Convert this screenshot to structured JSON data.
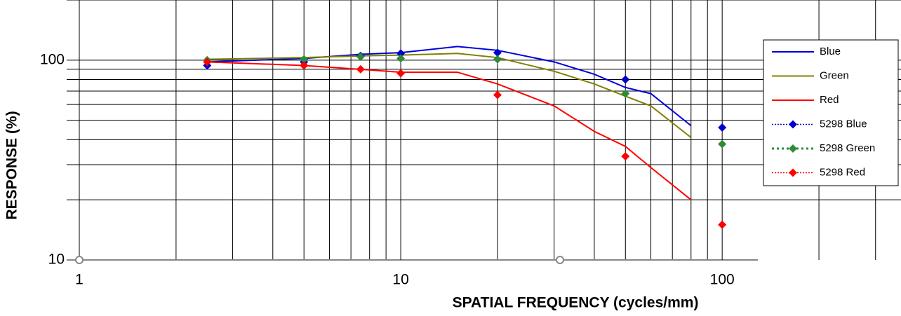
{
  "chart_data": {
    "type": "line",
    "xlabel": "SPATIAL FREQUENCY (cycles/mm)",
    "ylabel": "RESPONSE (%)",
    "xscale": "log",
    "yscale": "log",
    "grid": true,
    "legend": "right",
    "xlim": [
      1,
      360
    ],
    "ylim": [
      10,
      200
    ],
    "xticks": [
      1,
      10,
      100
    ],
    "yticks": [
      10,
      100
    ],
    "x_minor_ticks": [
      2,
      3,
      4,
      5,
      6,
      7,
      8,
      9,
      20,
      30,
      40,
      50,
      60,
      70,
      80,
      90,
      200,
      300
    ],
    "y_minor_ticks": [
      20,
      30,
      40,
      50,
      60,
      70,
      80,
      90,
      200
    ],
    "series": [
      {
        "name": "Blue",
        "color": "#0000dd",
        "style": "line",
        "x": [
          2.5,
          5,
          7.5,
          10,
          15,
          20,
          30,
          40,
          50,
          60,
          80
        ],
        "values": [
          98,
          102,
          107,
          109,
          117,
          112,
          98,
          85,
          73,
          68,
          47
        ]
      },
      {
        "name": "Green",
        "color": "#808000",
        "style": "line",
        "x": [
          2.5,
          5,
          7.5,
          10,
          15,
          20,
          30,
          40,
          50,
          60,
          80
        ],
        "values": [
          101,
          103,
          105,
          106,
          108,
          103,
          88,
          76,
          66,
          59,
          41
        ]
      },
      {
        "name": "Red",
        "color": "#ff0000",
        "style": "line",
        "x": [
          2.5,
          5,
          7.5,
          10,
          15,
          20,
          30,
          40,
          50,
          60,
          80
        ],
        "values": [
          98,
          94,
          90,
          87,
          87,
          76,
          59,
          44,
          37,
          29,
          20
        ]
      },
      {
        "name": "5298 Blue",
        "color": "#0000cc",
        "style": "markers",
        "x": [
          2.5,
          5,
          7.5,
          10,
          20,
          50,
          100
        ],
        "values": [
          94,
          98,
          105,
          108,
          109,
          80,
          46
        ]
      },
      {
        "name": "5298 Green",
        "color": "#2e8b3a",
        "style": "markers",
        "x": [
          2.5,
          5,
          7.5,
          10,
          20,
          50,
          100
        ],
        "values": [
          100,
          101,
          104,
          102,
          101,
          68,
          38
        ]
      },
      {
        "name": "5298 Red",
        "color": "#ff0000",
        "style": "markers",
        "x": [
          2.5,
          5,
          7.5,
          10,
          20,
          50,
          100
        ],
        "values": [
          98,
          94,
          90,
          86,
          67,
          33,
          15
        ]
      }
    ]
  }
}
